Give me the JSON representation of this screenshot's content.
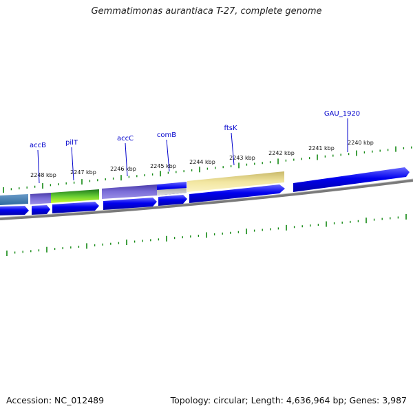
{
  "title": "Gemmatimonas aurantiaca T-27, complete genome",
  "footer": {
    "accession": "Accession: NC_012489",
    "summary": "Topology: circular; Length: 4,636,964 bp; Genes: 3,987"
  },
  "colors": {
    "forward_gene": "#0000ee",
    "backbone": "#808080",
    "tick": "#118811",
    "label": "#0000cc"
  },
  "ticks": [
    {
      "kbp": 2248,
      "label": "2248 kbp"
    },
    {
      "kbp": 2247,
      "label": "2247 kbp"
    },
    {
      "kbp": 2246,
      "label": "2246 kbp"
    },
    {
      "kbp": 2245,
      "label": "2245 kbp"
    },
    {
      "kbp": 2244,
      "label": "2244 kbp"
    },
    {
      "kbp": 2243,
      "label": "2243 kbp"
    },
    {
      "kbp": 2242,
      "label": "2242 kbp"
    },
    {
      "kbp": 2241,
      "label": "2241 kbp"
    },
    {
      "kbp": 2240,
      "label": "2240 kbp"
    }
  ],
  "gene_labels": [
    {
      "name": "accB"
    },
    {
      "name": "pilT"
    },
    {
      "name": "accC"
    },
    {
      "name": "comB"
    },
    {
      "name": "ftsK"
    },
    {
      "name": "GAU_1920"
    }
  ]
}
